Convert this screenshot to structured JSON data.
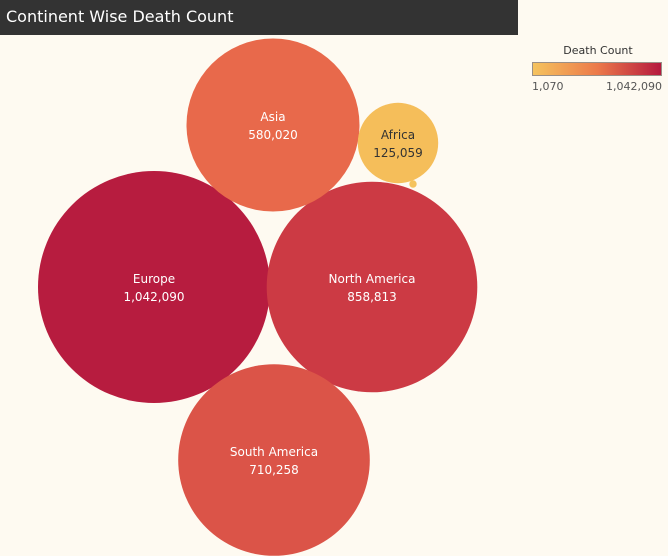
{
  "title": "Continent Wise Death Count",
  "legend": {
    "title": "Death Count",
    "min_label": "1,070",
    "max_label": "1,042,090",
    "min": 1070,
    "max": 1042090,
    "color_low": "#f5c35e",
    "color_mid": "#ec7a4a",
    "color_high": "#b5193e"
  },
  "chart_data": {
    "type": "bubble",
    "title": "Continent Wise Death Count",
    "measure": "Death Count",
    "series": [
      {
        "name": "Europe",
        "value": 1042090,
        "label": "1,042,090",
        "color": "#b71c3f"
      },
      {
        "name": "North America",
        "value": 858813,
        "label": "858,813",
        "color": "#cc3a44"
      },
      {
        "name": "South America",
        "value": 710258,
        "label": "710,258",
        "color": "#db5448"
      },
      {
        "name": "Asia",
        "value": 580020,
        "label": "580,020",
        "color": "#e8694b"
      },
      {
        "name": "Africa",
        "value": 125059,
        "label": "125,059",
        "color": "#f5be5a"
      },
      {
        "name": "",
        "value": 1070,
        "label": "",
        "color": "#f5c35e"
      }
    ]
  }
}
